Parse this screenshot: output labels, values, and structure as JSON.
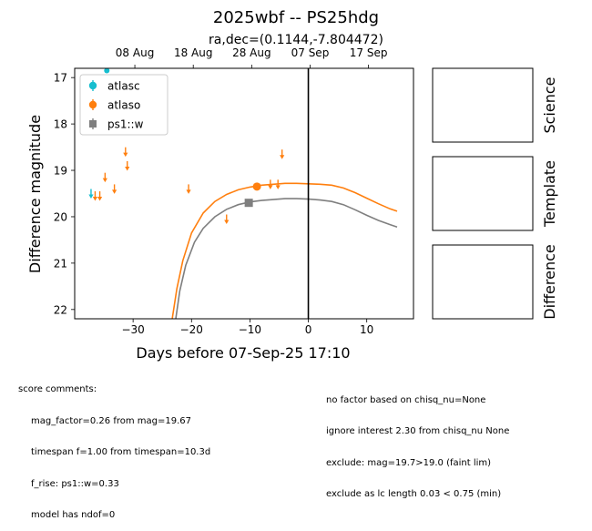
{
  "chart_data": {
    "type": "scatter",
    "title": "2025wbf -- PS25hdg",
    "subtitle": "ra,dec=(0.1144,-7.804472)",
    "xlabel": "Days before 07-Sep-25 17:10",
    "ylabel": "Difference magnitude",
    "xlim": [
      -40,
      18
    ],
    "ylim": [
      22.2,
      16.8
    ],
    "y_inverted": true,
    "x_ticks": [
      -30,
      -20,
      -10,
      0,
      10
    ],
    "x_tick_labels": [
      "−30",
      "−20",
      "−10",
      "0",
      "10"
    ],
    "y_ticks": [
      17,
      18,
      19,
      20,
      21,
      22
    ],
    "y_tick_labels": [
      "17",
      "18",
      "19",
      "20",
      "21",
      "22"
    ],
    "top_ticks": [
      {
        "x": -29.7,
        "label": "08 Aug"
      },
      {
        "x": -19.7,
        "label": "18 Aug"
      },
      {
        "x": -9.7,
        "label": "28 Aug"
      },
      {
        "x": 0.3,
        "label": "07 Sep"
      },
      {
        "x": 10.3,
        "label": "17 Sep"
      }
    ],
    "vline_x": 0,
    "legend_position": "upper-left",
    "series": [
      {
        "name": "atlasc",
        "color": "#17becf",
        "marker": "circle",
        "detections": [
          {
            "x": -34.5,
            "y": 16.85
          }
        ],
        "upper_limits": [
          {
            "x": -37.2,
            "y": 19.5
          }
        ]
      },
      {
        "name": "atlaso",
        "color": "#ff7f0e",
        "marker": "circle",
        "detections": [
          {
            "x": -8.8,
            "y": 19.35,
            "err": 0.08
          }
        ],
        "upper_limits": [
          {
            "x": -36.5,
            "y": 19.55
          },
          {
            "x": -35.7,
            "y": 19.55
          },
          {
            "x": -34.8,
            "y": 19.15
          },
          {
            "x": -33.2,
            "y": 19.4
          },
          {
            "x": -31.3,
            "y": 18.6
          },
          {
            "x": -31.0,
            "y": 18.9
          },
          {
            "x": -20.5,
            "y": 19.4
          },
          {
            "x": -14.0,
            "y": 20.05
          },
          {
            "x": -6.5,
            "y": 19.3
          },
          {
            "x": -5.2,
            "y": 19.3
          },
          {
            "x": -4.5,
            "y": 18.65
          }
        ]
      },
      {
        "name": "ps1::w",
        "color": "#7f7f7f",
        "marker": "square",
        "detections": [
          {
            "x": -10.2,
            "y": 19.7,
            "err": 0.07
          }
        ],
        "upper_limits": []
      }
    ],
    "model_curves": [
      {
        "color": "#ff7f0e",
        "points": [
          [
            -23.3,
            22.2
          ],
          [
            -22.5,
            21.55
          ],
          [
            -21.5,
            20.95
          ],
          [
            -20,
            20.35
          ],
          [
            -18,
            19.92
          ],
          [
            -16,
            19.67
          ],
          [
            -14,
            19.52
          ],
          [
            -12,
            19.42
          ],
          [
            -10,
            19.36
          ],
          [
            -8,
            19.32
          ],
          [
            -6,
            19.3
          ],
          [
            -4,
            19.28
          ],
          [
            -2,
            19.28
          ],
          [
            0,
            19.29
          ],
          [
            2,
            19.3
          ],
          [
            4,
            19.32
          ],
          [
            6,
            19.38
          ],
          [
            8,
            19.48
          ],
          [
            10,
            19.6
          ],
          [
            12,
            19.72
          ],
          [
            14,
            19.83
          ],
          [
            15.2,
            19.88
          ]
        ]
      },
      {
        "color": "#7f7f7f",
        "points": [
          [
            -22.7,
            22.2
          ],
          [
            -22,
            21.6
          ],
          [
            -21,
            21.05
          ],
          [
            -19.5,
            20.55
          ],
          [
            -18,
            20.25
          ],
          [
            -16,
            20.0
          ],
          [
            -14,
            19.84
          ],
          [
            -12,
            19.74
          ],
          [
            -10,
            19.68
          ],
          [
            -8,
            19.65
          ],
          [
            -6,
            19.63
          ],
          [
            -4,
            19.61
          ],
          [
            -2,
            19.61
          ],
          [
            0,
            19.62
          ],
          [
            2,
            19.64
          ],
          [
            4,
            19.67
          ],
          [
            6,
            19.74
          ],
          [
            8,
            19.85
          ],
          [
            10,
            19.97
          ],
          [
            12,
            20.08
          ],
          [
            14,
            20.17
          ],
          [
            15.2,
            20.22
          ]
        ]
      }
    ]
  },
  "panels": [
    {
      "label": "Science"
    },
    {
      "label": "Template"
    },
    {
      "label": "Difference"
    }
  ],
  "comments": {
    "heading": "score comments:",
    "left": [
      "mag_factor=0.26 from mag=19.67",
      "timespan f=1.00 from timespan=10.3d",
      "f_rise: ps1::w=0.33",
      "model has ndof=0"
    ],
    "right": [
      "no factor based on chisq_nu=None",
      "ignore interest 2.30 from chisq_nu None",
      "exclude: mag=19.7>19.0 (faint lim)",
      "exclude as lc length 0.03 < 0.75 (min)"
    ]
  }
}
